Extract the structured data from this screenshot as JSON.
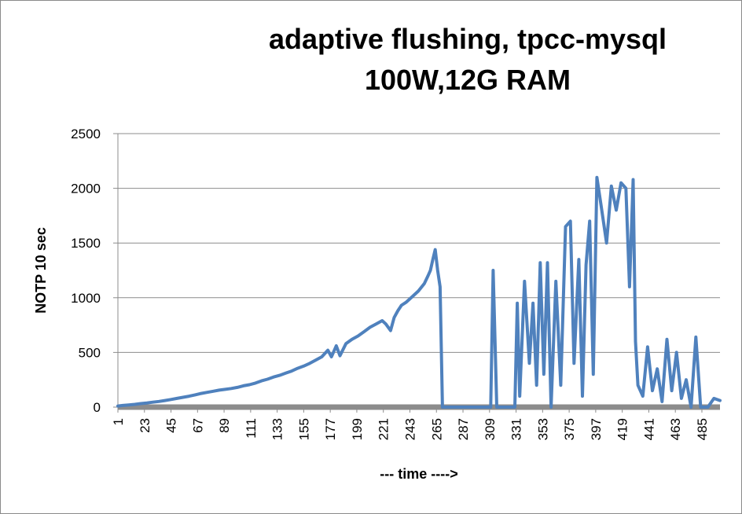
{
  "chart_data": {
    "type": "line",
    "title_line1": "adaptive flushing, tpcc-mysql",
    "title_line2": "100W,12G RAM",
    "xlabel": "--- time ---->",
    "ylabel": "NOTP 10 sec",
    "ylim": [
      0,
      2500
    ],
    "y_ticks": [
      0,
      500,
      1000,
      1500,
      2000,
      2500
    ],
    "x_range": [
      1,
      500
    ],
    "x_ticks": [
      1,
      23,
      45,
      67,
      89,
      111,
      133,
      155,
      177,
      199,
      221,
      243,
      265,
      287,
      309,
      331,
      353,
      375,
      397,
      419,
      441,
      463,
      485
    ],
    "grid": true,
    "legend": "none",
    "series_color": "#4f81bd",
    "series": [
      {
        "points": [
          [
            1,
            10
          ],
          [
            5,
            15
          ],
          [
            10,
            20
          ],
          [
            15,
            25
          ],
          [
            20,
            32
          ],
          [
            25,
            38
          ],
          [
            30,
            45
          ],
          [
            35,
            52
          ],
          [
            40,
            60
          ],
          [
            45,
            70
          ],
          [
            50,
            80
          ],
          [
            55,
            90
          ],
          [
            60,
            100
          ],
          [
            65,
            112
          ],
          [
            70,
            125
          ],
          [
            75,
            135
          ],
          [
            80,
            145
          ],
          [
            85,
            155
          ],
          [
            90,
            162
          ],
          [
            95,
            170
          ],
          [
            100,
            180
          ],
          [
            105,
            195
          ],
          [
            110,
            205
          ],
          [
            115,
            220
          ],
          [
            120,
            240
          ],
          [
            125,
            255
          ],
          [
            130,
            275
          ],
          [
            135,
            290
          ],
          [
            140,
            310
          ],
          [
            145,
            330
          ],
          [
            150,
            355
          ],
          [
            155,
            375
          ],
          [
            160,
            400
          ],
          [
            165,
            430
          ],
          [
            170,
            460
          ],
          [
            175,
            520
          ],
          [
            178,
            460
          ],
          [
            182,
            560
          ],
          [
            185,
            470
          ],
          [
            190,
            580
          ],
          [
            195,
            620
          ],
          [
            200,
            650
          ],
          [
            205,
            690
          ],
          [
            210,
            730
          ],
          [
            215,
            760
          ],
          [
            220,
            790
          ],
          [
            223,
            760
          ],
          [
            227,
            700
          ],
          [
            230,
            820
          ],
          [
            233,
            880
          ],
          [
            236,
            930
          ],
          [
            240,
            960
          ],
          [
            245,
            1010
          ],
          [
            250,
            1060
          ],
          [
            255,
            1130
          ],
          [
            258,
            1200
          ],
          [
            260,
            1250
          ],
          [
            262,
            1350
          ],
          [
            264,
            1440
          ],
          [
            266,
            1250
          ],
          [
            268,
            1100
          ],
          [
            270,
            0
          ],
          [
            310,
            0
          ],
          [
            312,
            1250
          ],
          [
            315,
            0
          ],
          [
            330,
            0
          ],
          [
            332,
            950
          ],
          [
            334,
            100
          ],
          [
            338,
            1150
          ],
          [
            342,
            400
          ],
          [
            345,
            950
          ],
          [
            348,
            200
          ],
          [
            351,
            1320
          ],
          [
            354,
            300
          ],
          [
            357,
            1320
          ],
          [
            360,
            0
          ],
          [
            364,
            1150
          ],
          [
            368,
            200
          ],
          [
            372,
            1650
          ],
          [
            376,
            1700
          ],
          [
            379,
            400
          ],
          [
            383,
            1350
          ],
          [
            386,
            100
          ],
          [
            389,
            1300
          ],
          [
            392,
            1700
          ],
          [
            395,
            300
          ],
          [
            398,
            2100
          ],
          [
            402,
            1800
          ],
          [
            406,
            1500
          ],
          [
            410,
            2020
          ],
          [
            414,
            1800
          ],
          [
            418,
            2050
          ],
          [
            422,
            2000
          ],
          [
            425,
            1100
          ],
          [
            428,
            2080
          ],
          [
            430,
            600
          ],
          [
            432,
            200
          ],
          [
            436,
            100
          ],
          [
            440,
            550
          ],
          [
            444,
            150
          ],
          [
            448,
            350
          ],
          [
            452,
            50
          ],
          [
            456,
            620
          ],
          [
            460,
            150
          ],
          [
            464,
            500
          ],
          [
            468,
            80
          ],
          [
            472,
            250
          ],
          [
            476,
            0
          ],
          [
            480,
            640
          ],
          [
            484,
            0
          ],
          [
            490,
            0
          ],
          [
            495,
            80
          ],
          [
            500,
            60
          ]
        ]
      }
    ]
  }
}
